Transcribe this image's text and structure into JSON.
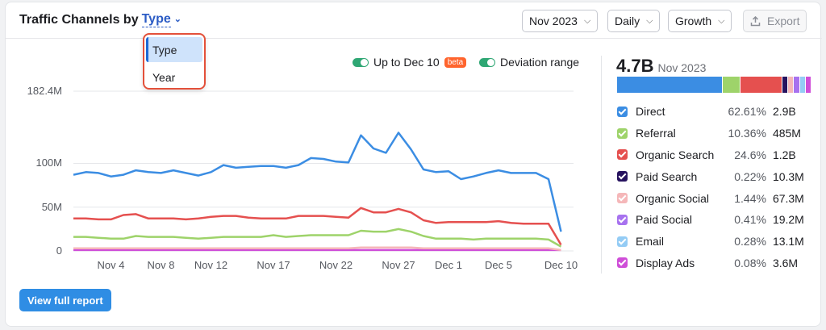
{
  "header": {
    "title_prefix": "Traffic Channels by",
    "type_trigger": "Type",
    "month_select": "Nov 2023",
    "interval_select": "Daily",
    "metric_select": "Growth",
    "export_label": "Export"
  },
  "dropdown": {
    "items": [
      "Type",
      "Year"
    ],
    "selected": "Type"
  },
  "legend_top": {
    "up_to_label": "Up to Dec 10",
    "beta_label": "beta",
    "deviation_label": "Deviation range"
  },
  "summary": {
    "total": "4.7B",
    "month": "Nov 2023"
  },
  "channels": [
    {
      "name": "Direct",
      "pct": "62.61%",
      "value": "2.9B",
      "color": "#3b8de3",
      "share": 62.61
    },
    {
      "name": "Referral",
      "pct": "10.36%",
      "value": "485M",
      "color": "#9ed36a",
      "share": 10.36
    },
    {
      "name": "Organic Search",
      "pct": "24.6%",
      "value": "1.2B",
      "color": "#e5504f",
      "share": 24.6
    },
    {
      "name": "Paid Search",
      "pct": "0.22%",
      "value": "10.3M",
      "color": "#27135f",
      "share": 0.22
    },
    {
      "name": "Organic Social",
      "pct": "1.44%",
      "value": "67.3M",
      "color": "#f5b7b9",
      "share": 1.44
    },
    {
      "name": "Paid Social",
      "pct": "0.41%",
      "value": "19.2M",
      "color": "#a772ef",
      "share": 0.41
    },
    {
      "name": "Email",
      "pct": "0.28%",
      "value": "13.1M",
      "color": "#94ccf5",
      "share": 0.28
    },
    {
      "name": "Display Ads",
      "pct": "0.08%",
      "value": "3.6M",
      "color": "#cf4ed8",
      "share": 0.08
    }
  ],
  "view_full_report": "View full report",
  "chart_data": {
    "type": "line",
    "y_ticks": [
      {
        "label": "182.4M",
        "value": 182.4
      },
      {
        "label": "100M",
        "value": 100
      },
      {
        "label": "50M",
        "value": 50
      },
      {
        "label": "0",
        "value": 0
      }
    ],
    "ylim": [
      0,
      182.4
    ],
    "x_ticks": [
      {
        "label": "Nov 4",
        "day": 4
      },
      {
        "label": "Nov 8",
        "day": 8
      },
      {
        "label": "Nov 12",
        "day": 12
      },
      {
        "label": "Nov 17",
        "day": 17
      },
      {
        "label": "Nov 22",
        "day": 22
      },
      {
        "label": "Nov 27",
        "day": 27
      },
      {
        "label": "Dec 1",
        "day": 31
      },
      {
        "label": "Dec 5",
        "day": 35
      },
      {
        "label": "Dec 10",
        "day": 40
      }
    ],
    "x_range": [
      1,
      41
    ],
    "series": [
      {
        "name": "Direct",
        "color": "#3b8de3",
        "values": [
          87,
          90,
          89,
          85,
          87,
          92,
          90,
          89,
          92,
          89,
          86,
          90,
          98,
          95,
          96,
          97,
          97,
          95,
          98,
          106,
          105,
          102,
          101,
          132,
          117,
          112,
          135,
          116,
          93,
          90,
          91,
          82,
          85,
          89,
          92,
          89,
          89,
          89,
          82,
          22
        ]
      },
      {
        "name": "Organic Search",
        "color": "#e5504f",
        "values": [
          37,
          37,
          36,
          36,
          41,
          42,
          37,
          37,
          37,
          36,
          37,
          39,
          40,
          40,
          38,
          37,
          37,
          37,
          40,
          40,
          40,
          39,
          38,
          49,
          44,
          44,
          48,
          44,
          35,
          32,
          33,
          33,
          33,
          33,
          34,
          32,
          31,
          31,
          31,
          7
        ]
      },
      {
        "name": "Referral",
        "color": "#9ed36a",
        "values": [
          16,
          16,
          15,
          14,
          14,
          17,
          16,
          16,
          16,
          15,
          14,
          15,
          16,
          16,
          16,
          16,
          18,
          16,
          17,
          18,
          18,
          18,
          18,
          23,
          22,
          22,
          25,
          22,
          17,
          14,
          14,
          14,
          13,
          14,
          14,
          14,
          14,
          14,
          13,
          5
        ]
      },
      {
        "name": "Organic Social",
        "color": "#f5b7b9",
        "values": [
          3,
          3,
          3,
          3,
          3,
          3,
          3,
          3,
          3,
          3,
          3,
          3,
          3,
          3,
          3,
          3,
          3,
          3,
          3,
          3,
          3,
          3,
          3,
          4,
          4,
          4,
          4,
          4,
          3,
          3,
          3,
          3,
          3,
          3,
          3,
          3,
          3,
          3,
          3,
          1
        ]
      },
      {
        "name": "Display Ads",
        "color": "#cf4ed8",
        "values": [
          1,
          1,
          1,
          1,
          1,
          1,
          1,
          1,
          1,
          1,
          1,
          1,
          1,
          1,
          1,
          1,
          1,
          1,
          1,
          1,
          1,
          1,
          1,
          1,
          1,
          1,
          1,
          1,
          1,
          1,
          1,
          1,
          1,
          1,
          1,
          1,
          1,
          1,
          1,
          1
        ]
      }
    ]
  }
}
